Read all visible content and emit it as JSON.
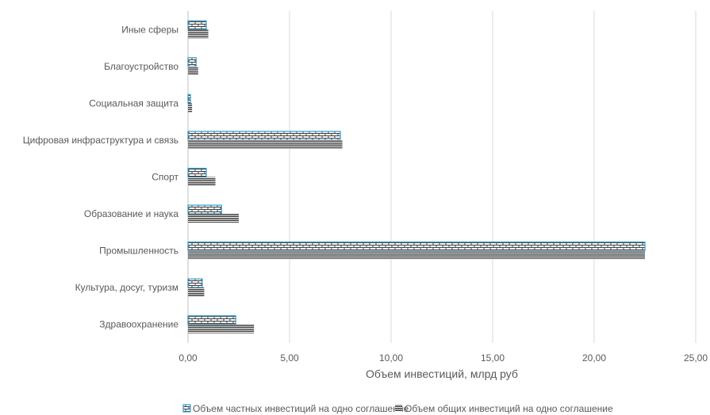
{
  "chart_data": {
    "type": "bar",
    "orientation": "horizontal",
    "categories": [
      "Здравоохранение",
      "Культура, досуг, туризм",
      "Промышленность",
      "Образование и наука",
      "Спорт",
      "Цифровая инфраструктура и связь",
      "Социальная защита",
      "Благоустройство",
      "Иные сферы"
    ],
    "series": [
      {
        "name": "Объем частных инвестиций на одно соглашение",
        "values": [
          2.35,
          0.7,
          22.5,
          1.65,
          0.9,
          7.5,
          0.12,
          0.4,
          0.9
        ],
        "color": "#2E9CCF"
      },
      {
        "name": "Объем общих инвестиций на одно соглашение",
        "values": [
          3.25,
          0.8,
          22.5,
          2.5,
          1.35,
          7.6,
          0.2,
          0.5,
          1.0
        ],
        "color": "#404040"
      }
    ],
    "xlim": [
      0,
      25
    ],
    "xticks": [
      "0,00",
      "5,00",
      "10,00",
      "15,00",
      "20,00",
      "25,00"
    ],
    "xlabel": "Объем инвестиций, млрд руб",
    "ylabel": "",
    "grid": "vertical",
    "legend": "bottom"
  }
}
